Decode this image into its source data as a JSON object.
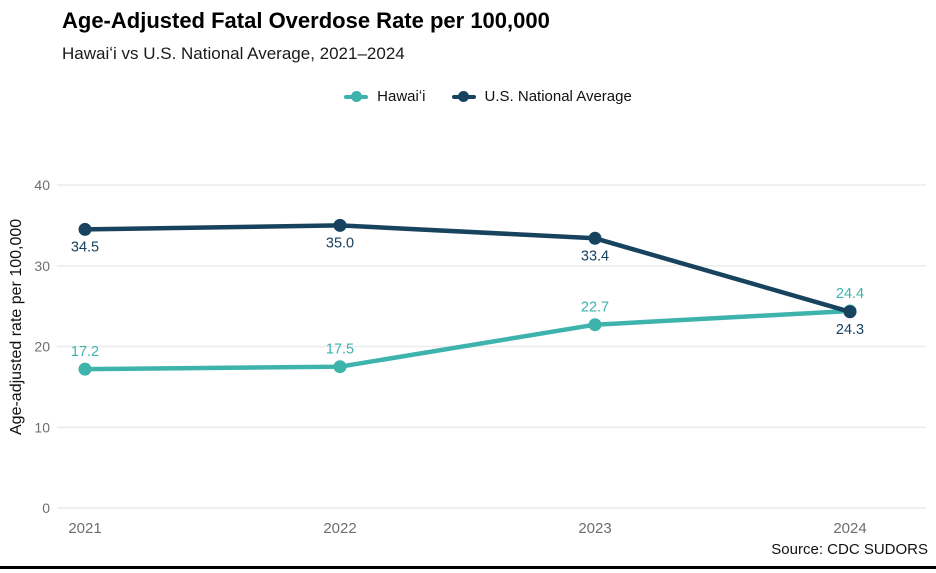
{
  "header": {
    "title": "Age-Adjusted Fatal Overdose Rate per 100,000",
    "subtitle": "Hawaiʻi vs U.S. National Average, 2021–2024"
  },
  "legend": {
    "items": [
      {
        "label": "Hawaiʻi",
        "color": "#3db3ac"
      },
      {
        "label": "U.S. National Average",
        "color": "#17435f"
      }
    ]
  },
  "footer": {
    "source": "Source: CDC SUDORS"
  },
  "chart_data": {
    "type": "line",
    "title": "Age-Adjusted Fatal Overdose Rate per 100,000",
    "subtitle": "Hawaiʻi vs U.S. National Average, 2021–2024",
    "xlabel": "",
    "ylabel": "Age-adjusted rate per 100,000",
    "x": [
      "2021",
      "2022",
      "2023",
      "2024"
    ],
    "series": [
      {
        "name": "Hawaiʻi",
        "color": "#3db3ac",
        "values": [
          17.2,
          17.5,
          22.7,
          24.4
        ],
        "point_label_position": "above"
      },
      {
        "name": "U.S. National Average",
        "color": "#17435f",
        "values": [
          34.5,
          35.0,
          33.4,
          24.3
        ],
        "point_label_position": "below"
      }
    ],
    "ylim": [
      0,
      40
    ],
    "yticks": [
      0,
      10,
      20,
      30,
      40
    ],
    "grid": true,
    "grid_color": "#ebebeb",
    "axis_tick_color": "#6e6e6e",
    "legend_position": "top-center",
    "point_labels": true,
    "point_label_decimals": 1,
    "source": "Source: CDC SUDORS"
  }
}
